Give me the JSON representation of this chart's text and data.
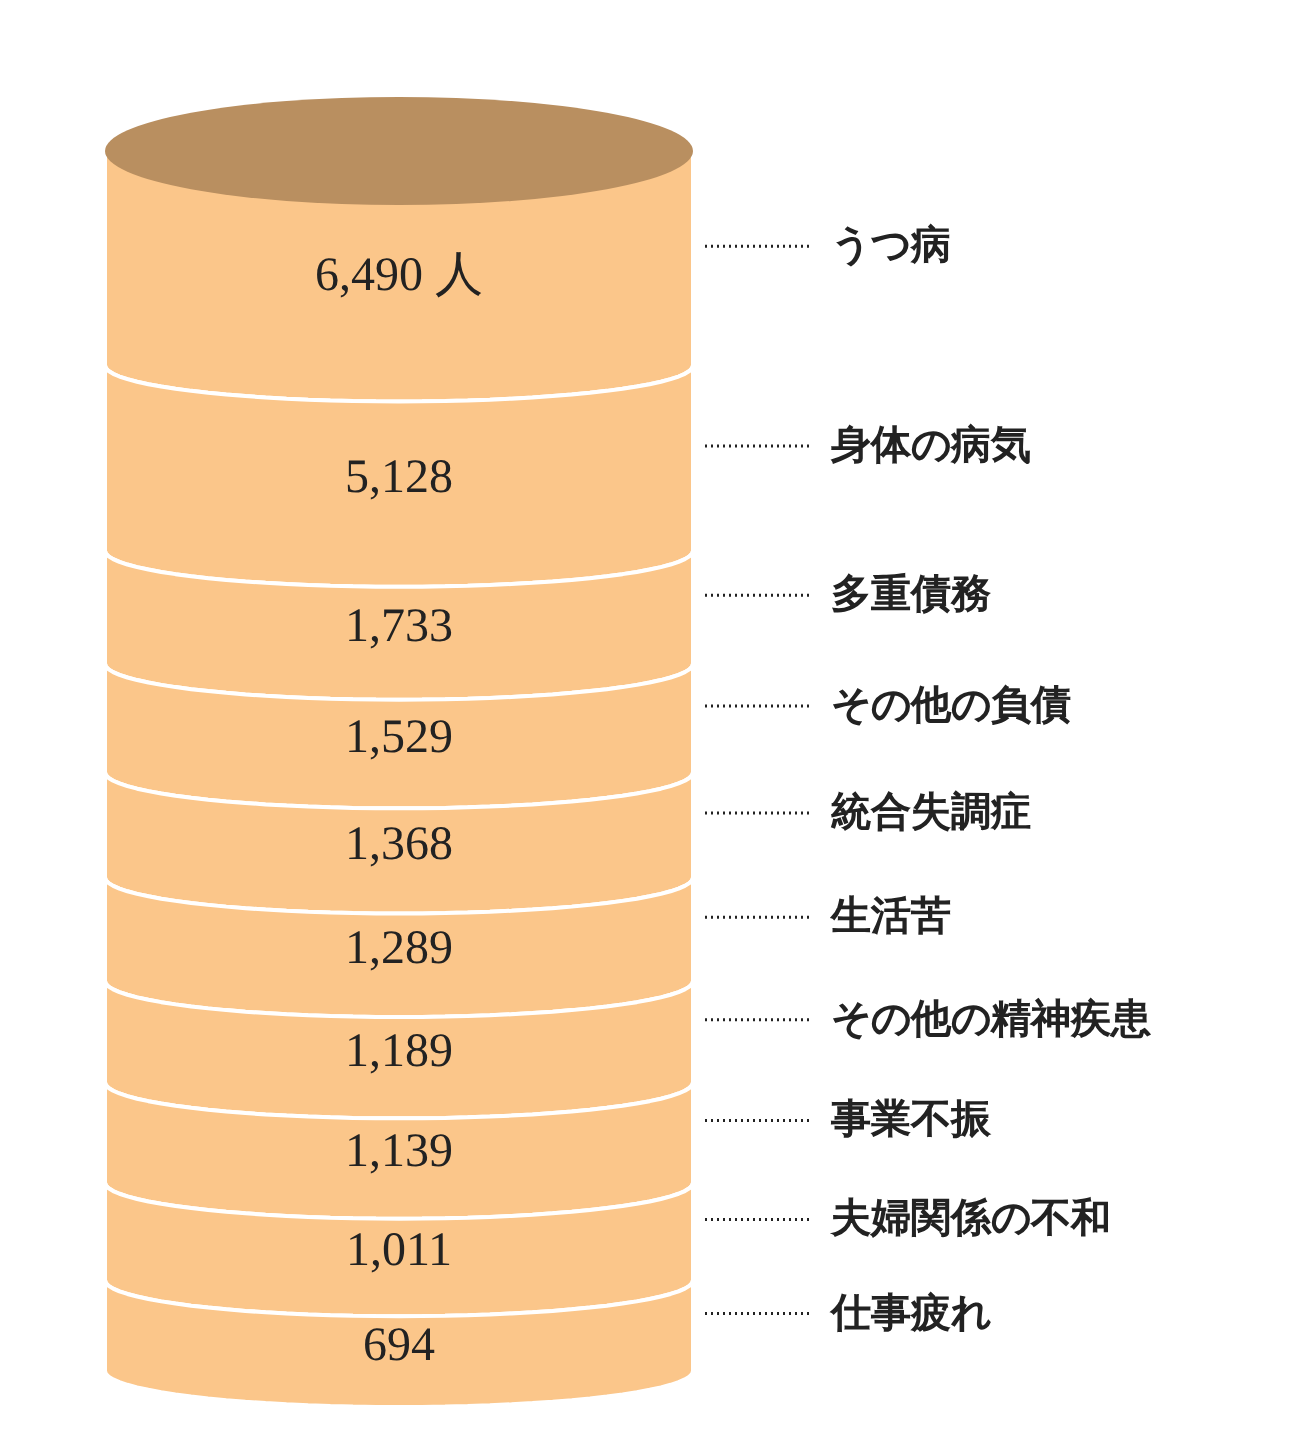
{
  "chart_data": {
    "type": "other",
    "categories": [
      "うつ病",
      "身体の病気",
      "多重債務",
      "その他の負債",
      "統合失調症",
      "生活苦",
      "その他の精神疾患",
      "事業不振",
      "夫婦関係の不和",
      "仕事疲れ"
    ],
    "values": [
      6490,
      5128,
      1733,
      1529,
      1368,
      1289,
      1189,
      1139,
      1011,
      694
    ],
    "value_labels": [
      "6,490 人",
      "5,128",
      "1,733",
      "1,529",
      "1,368",
      "1,289",
      "1,189",
      "1,139",
      "1,011",
      "694"
    ],
    "colors": [
      "#fbc68a",
      "#fbc68a",
      "#fbc68a",
      "#fbc68a",
      "#fbc68a",
      "#fbc68a",
      "#fbc68a",
      "#fbc68a",
      "#fbc68a",
      "#fbc68a"
    ]
  }
}
